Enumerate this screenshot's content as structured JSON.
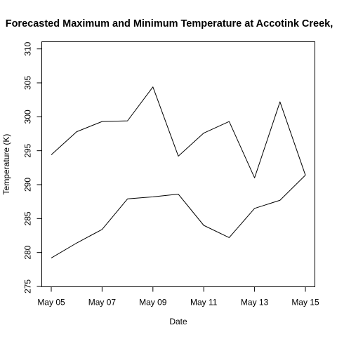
{
  "chart_data": {
    "type": "line",
    "title": "Forecasted Maximum and Minimum Temperature at Accotink Creek,",
    "xlabel": "Date",
    "ylabel": "Temperature (K)",
    "x": [
      "2025-05-05",
      "2025-05-06",
      "2025-05-07",
      "2025-05-08",
      "2025-05-09",
      "2025-05-10",
      "2025-05-11",
      "2025-05-12",
      "2025-05-13",
      "2025-05-14",
      "2025-05-15"
    ],
    "xlim": [
      "2025-05-05",
      "2025-05-15"
    ],
    "x_ticks": [
      {
        "date": "2025-05-05",
        "label": "May 05"
      },
      {
        "date": "2025-05-07",
        "label": "May 07"
      },
      {
        "date": "2025-05-09",
        "label": "May 09"
      },
      {
        "date": "2025-05-11",
        "label": "May 11"
      },
      {
        "date": "2025-05-13",
        "label": "May 13"
      },
      {
        "date": "2025-05-15",
        "label": "May 15"
      }
    ],
    "ylim": [
      275,
      311
    ],
    "y_ticks": [
      275,
      280,
      285,
      290,
      295,
      300,
      305,
      310
    ],
    "grid": false,
    "legend": "none",
    "series": [
      {
        "values": [
          294.4,
          297.8,
          299.3,
          299.4,
          304.4,
          294.2,
          297.6,
          299.3,
          291.0,
          302.2,
          291.4
        ]
      },
      {
        "values": [
          279.2,
          281.4,
          283.4,
          287.9,
          288.2,
          288.6,
          284.0,
          282.2,
          286.5,
          287.7,
          291.4
        ]
      }
    ]
  }
}
